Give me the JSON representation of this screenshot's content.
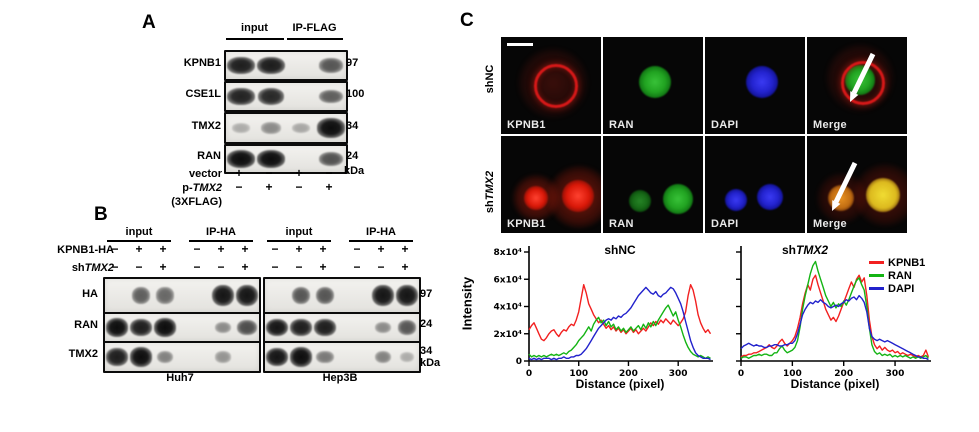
{
  "panelA": {
    "label": "A",
    "col_headers": [
      "input",
      "IP-FLAG"
    ],
    "rows": [
      {
        "label": "KPNB1",
        "mw": "97",
        "bands": [
          0.9,
          0.92,
          0,
          0.6
        ]
      },
      {
        "label": "CSE1L",
        "mw": "100",
        "bands": [
          0.88,
          0.85,
          0,
          0.55
        ]
      },
      {
        "label": "TMX2",
        "mw": "34",
        "bands": [
          0.12,
          0.3,
          0.15,
          1
        ]
      },
      {
        "label": "RAN",
        "mw": "24",
        "bands": [
          1,
          1,
          0,
          0.62
        ]
      }
    ],
    "kda": "kDa",
    "cond1": {
      "label": "vector",
      "signs": [
        "+",
        "−",
        "+",
        "−"
      ]
    },
    "cond2": {
      "prefix": "p-",
      "italic": "TMX2",
      "signs": [
        "−",
        "+",
        "−",
        "+"
      ]
    },
    "cond3": "(3XFLAG)"
  },
  "panelB": {
    "label": "B",
    "cond1_label": "KPNB1-HA",
    "cond2": {
      "prefix": "sh",
      "italic": "TMX2"
    },
    "row_labels": [
      "HA",
      "RAN",
      "TMX2"
    ],
    "mws": [
      "97",
      "24",
      "34"
    ],
    "kda": "kDa",
    "groups": [
      {
        "name": "Huh7",
        "col_headers": [
          "input",
          "IP-HA"
        ],
        "cond1_signs": [
          "−",
          "+",
          "+",
          "−",
          "+",
          "+"
        ],
        "cond2_signs": [
          "−",
          "−",
          "+",
          "−",
          "−",
          "+"
        ],
        "rows": [
          [
            0,
            0.55,
            0.5,
            0,
            0.95,
            0.95
          ],
          [
            1,
            0.9,
            1,
            0,
            0.3,
            0.65
          ],
          [
            0.9,
            1,
            0.35,
            0,
            0.25,
            0
          ]
        ]
      },
      {
        "name": "Hep3B",
        "col_headers": [
          "input",
          "IP-HA"
        ],
        "cond1_signs": [
          "−",
          "+",
          "+",
          "−",
          "+",
          "+"
        ],
        "cond2_signs": [
          "−",
          "−",
          "+",
          "−",
          "−",
          "+"
        ],
        "rows": [
          [
            0,
            0.6,
            0.6,
            0,
            0.95,
            0.95
          ],
          [
            0.95,
            0.9,
            0.9,
            0,
            0.3,
            0.6
          ],
          [
            0.95,
            1,
            0.4,
            0,
            0.35,
            0.12
          ]
        ]
      }
    ]
  },
  "panelC": {
    "label": "C",
    "row_labels": [
      {
        "prefix": "shNC",
        "italic": ""
      },
      {
        "prefix": "sh",
        "italic": "TMX2"
      }
    ],
    "tile_labels": [
      [
        "KPNB1",
        "RAN",
        "DAPI",
        "Merge"
      ],
      [
        "KPNB1",
        "RAN",
        "DAPI",
        "Merge"
      ]
    ],
    "channel_colors": {
      "KPNB1": "#e81c1c",
      "RAN": "#16b716",
      "DAPI": "#2222d6"
    }
  },
  "chart_data": [
    {
      "type": "line",
      "title": {
        "prefix": "shNC",
        "italic": ""
      },
      "xlabel": "Distance (pixel)",
      "ylabel": "Intensity",
      "xlim": [
        0,
        370
      ],
      "ylim": [
        0,
        80000
      ],
      "y_scale": 1000,
      "xticks": [
        0,
        100,
        200,
        300
      ],
      "yticks": [
        0,
        20,
        40,
        60,
        80
      ],
      "ytick_labels": [
        "0",
        "2x10⁴",
        "4x10⁴",
        "6x10⁴",
        "8x10⁴"
      ],
      "show_ytick_labels": true,
      "legend": false,
      "x_start": 0,
      "x_step": 5,
      "series": [
        {
          "name": "KPNB1",
          "color": "#f22020",
          "y": [
            23,
            26,
            28,
            24,
            20,
            16,
            15,
            17,
            20,
            22,
            23,
            20,
            18,
            21,
            23,
            22,
            25,
            27,
            26,
            30,
            36,
            46,
            56,
            50,
            42,
            38,
            34,
            31,
            28,
            30,
            27,
            24,
            26,
            23,
            25,
            22,
            24,
            21,
            23,
            20,
            22,
            24,
            21,
            23,
            20,
            22,
            24,
            22,
            25,
            28,
            26,
            29,
            27,
            30,
            28,
            31,
            29,
            27,
            30,
            28,
            26,
            28,
            31,
            36,
            48,
            56,
            52,
            44,
            34,
            28,
            24,
            21,
            23,
            20
          ]
        },
        {
          "name": "RAN",
          "color": "#14b414",
          "y": [
            5,
            3,
            4,
            3,
            4,
            3,
            4,
            3,
            4,
            5,
            4,
            5,
            4,
            5,
            6,
            5,
            7,
            8,
            10,
            12,
            15,
            17,
            19,
            22,
            25,
            22,
            27,
            30,
            32,
            28,
            30,
            26,
            29,
            25,
            27,
            23,
            25,
            22,
            24,
            21,
            23,
            25,
            22,
            24,
            26,
            23,
            27,
            24,
            28,
            25,
            29,
            26,
            30,
            33,
            36,
            39,
            41,
            37,
            33,
            36,
            30,
            25,
            19,
            14,
            10,
            7,
            5,
            4,
            3,
            4,
            3,
            2,
            3,
            2
          ]
        },
        {
          "name": "DAPI",
          "color": "#2222cc",
          "y": [
            2,
            1,
            2,
            1,
            2,
            1,
            2,
            2,
            2,
            1,
            2,
            1,
            2,
            2,
            3,
            2,
            2,
            3,
            3,
            4,
            4,
            5,
            7,
            9,
            12,
            15,
            18,
            21,
            24,
            26,
            28,
            30,
            31,
            30,
            32,
            31,
            33,
            32,
            34,
            35,
            37,
            39,
            42,
            45,
            48,
            50,
            52,
            54,
            52,
            50,
            49,
            51,
            48,
            47,
            49,
            50,
            52,
            54,
            53,
            50,
            46,
            42,
            36,
            29,
            22,
            15,
            10,
            6,
            4,
            3,
            2,
            2,
            2,
            1
          ]
        }
      ]
    },
    {
      "type": "line",
      "title": {
        "prefix": "sh",
        "italic": "TMX2"
      },
      "xlabel": "Distance (pixel)",
      "ylabel": "Intensity",
      "xlim": [
        0,
        370
      ],
      "ylim": [
        0,
        80000
      ],
      "y_scale": 1000,
      "xticks": [
        0,
        100,
        200,
        300
      ],
      "yticks": [
        0,
        20,
        40,
        60,
        80
      ],
      "ytick_labels": [
        "0",
        "2x10⁴",
        "4x10⁴",
        "6x10⁴",
        "8x10⁴"
      ],
      "show_ytick_labels": false,
      "legend": {
        "position": "top-right"
      },
      "x_start": 0,
      "x_step": 5,
      "series": [
        {
          "name": "KPNB1",
          "color": "#f22020",
          "y": [
            3,
            4,
            4,
            5,
            5,
            6,
            6,
            7,
            8,
            9,
            10,
            12,
            10,
            9,
            11,
            14,
            16,
            13,
            11,
            13,
            15,
            18,
            24,
            32,
            42,
            50,
            56,
            52,
            60,
            63,
            56,
            50,
            44,
            38,
            34,
            30,
            32,
            29,
            33,
            38,
            43,
            48,
            53,
            58,
            54,
            60,
            63,
            58,
            61,
            48,
            30,
            18,
            12,
            9,
            11,
            8,
            10,
            8,
            7,
            8,
            6,
            7,
            5,
            6,
            5,
            4,
            5,
            4,
            3,
            4,
            3,
            4,
            8,
            3
          ]
        },
        {
          "name": "RAN",
          "color": "#14b414",
          "y": [
            2,
            3,
            3,
            2,
            3,
            4,
            4,
            5,
            4,
            5,
            5,
            4,
            4,
            6,
            6,
            9,
            11,
            8,
            6,
            7,
            8,
            10,
            15,
            25,
            38,
            48,
            56,
            64,
            70,
            73,
            66,
            60,
            54,
            48,
            44,
            40,
            43,
            39,
            42,
            40,
            44,
            41,
            45,
            50,
            55,
            59,
            61,
            56,
            52,
            40,
            24,
            12,
            7,
            5,
            6,
            4,
            5,
            4,
            5,
            3,
            4,
            3,
            4,
            3,
            4,
            3,
            2,
            3,
            2,
            3,
            2,
            3,
            4,
            2
          ]
        },
        {
          "name": "DAPI",
          "color": "#2222cc",
          "y": [
            9,
            11,
            12,
            13,
            12,
            11,
            12,
            11,
            11,
            10,
            10,
            11,
            11,
            12,
            12,
            11,
            11,
            12,
            12,
            13,
            13,
            15,
            20,
            27,
            34,
            38,
            41,
            43,
            42,
            44,
            43,
            45,
            43,
            42,
            40,
            39,
            40,
            41,
            40,
            42,
            43,
            45,
            44,
            46,
            47,
            45,
            48,
            46,
            43,
            36,
            24,
            18,
            16,
            15,
            16,
            15,
            14,
            15,
            14,
            13,
            12,
            11,
            10,
            9,
            8,
            7,
            6,
            5,
            4,
            3,
            3,
            2,
            2,
            1
          ]
        }
      ]
    }
  ]
}
